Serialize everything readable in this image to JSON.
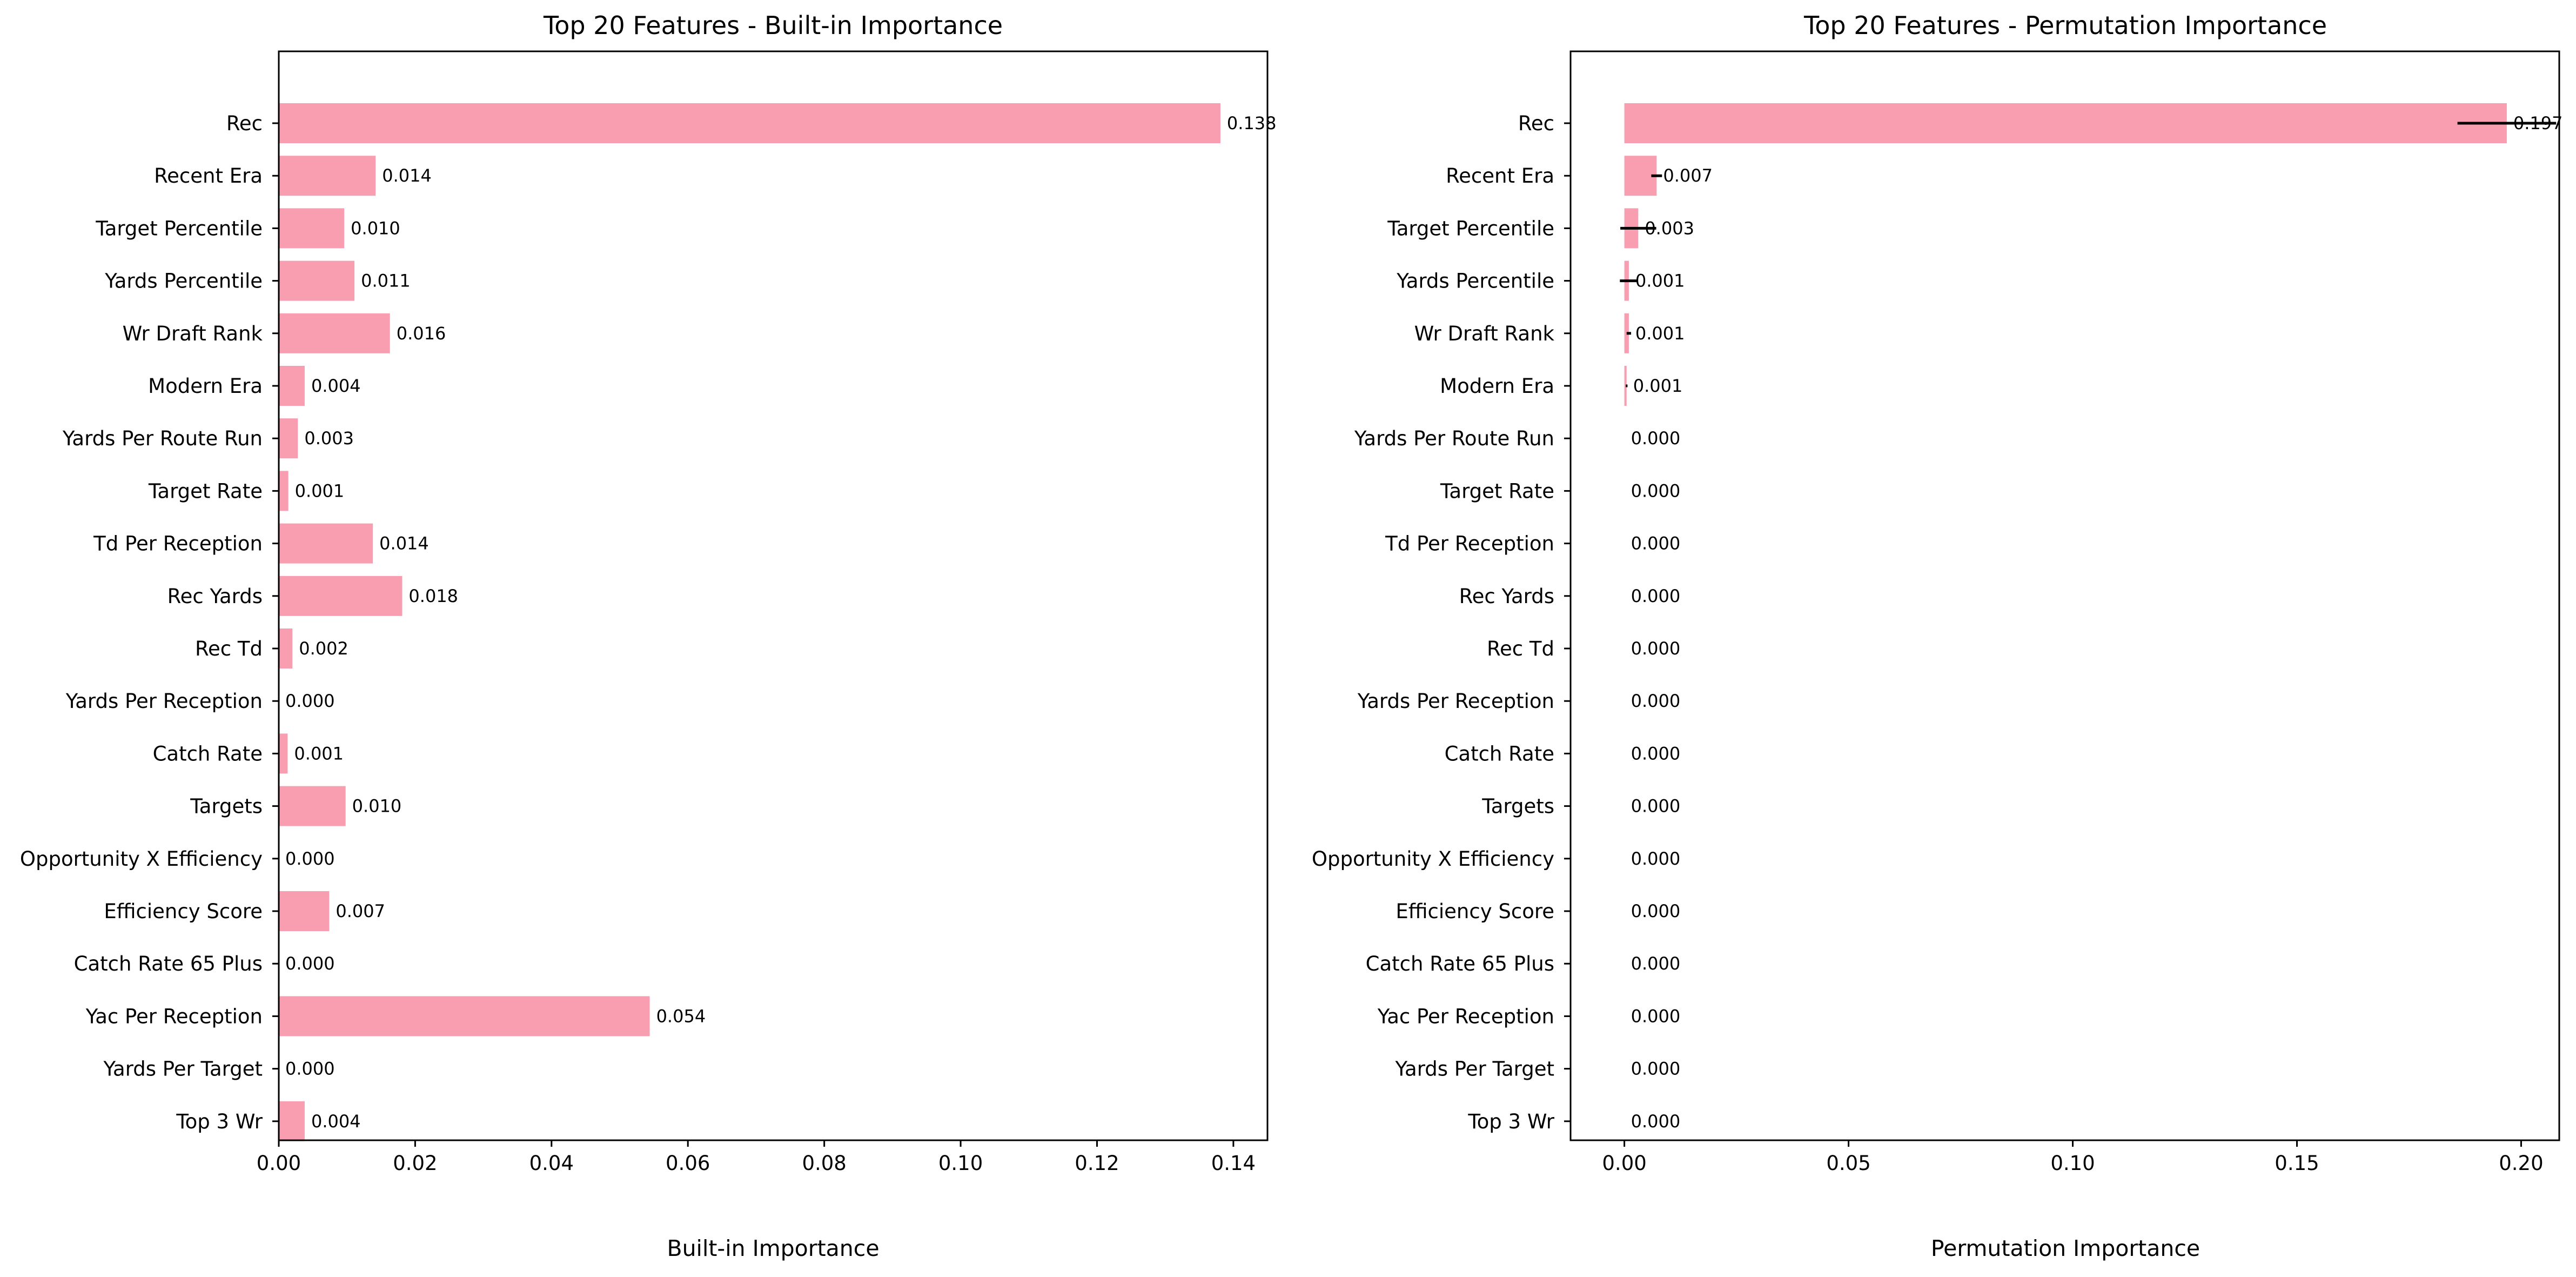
{
  "colors": {
    "bar": "#f89eb0",
    "axis": "#000000",
    "errorbar": "#000000"
  },
  "chart_data": [
    {
      "type": "bar",
      "orientation": "horizontal",
      "title": "Top 20 Features - Built-in Importance",
      "xlabel": "Built-in Importance",
      "ylabel": "",
      "xlim": [
        0,
        0.145
      ],
      "xticks": [
        "0.00",
        "0.02",
        "0.04",
        "0.06",
        "0.08",
        "0.10",
        "0.12",
        "0.14"
      ],
      "xtick_values": [
        0,
        0.02,
        0.04,
        0.06,
        0.08,
        0.1,
        0.12,
        0.14
      ],
      "grid": false,
      "categories": [
        "Rec",
        "Recent Era",
        "Target Percentile",
        "Yards Percentile",
        "Wr Draft Rank",
        "Modern Era",
        "Yards Per Route Run",
        "Target Rate",
        "Td Per Reception",
        "Rec Yards",
        "Rec Td",
        "Yards Per Reception",
        "Catch Rate",
        "Targets",
        "Opportunity X Efficiency",
        "Efficiency Score",
        "Catch Rate 65 Plus",
        "Yac Per Reception",
        "Yards Per Target",
        "Top 3 Wr"
      ],
      "values": [
        0.1381,
        0.0142,
        0.0096,
        0.0111,
        0.0163,
        0.0038,
        0.0028,
        0.0014,
        0.0138,
        0.0181,
        0.002,
        0.0,
        0.0013,
        0.0098,
        0.0,
        0.0074,
        0.0,
        0.0544,
        0.0,
        0.0038
      ],
      "value_labels": [
        "0.138",
        "0.014",
        "0.010",
        "0.011",
        "0.016",
        "0.004",
        "0.003",
        "0.001",
        "0.014",
        "0.018",
        "0.002",
        "0.000",
        "0.001",
        "0.010",
        "0.000",
        "0.007",
        "0.000",
        "0.054",
        "0.000",
        "0.004"
      ]
    },
    {
      "type": "bar",
      "orientation": "horizontal",
      "title": "Top 20 Features - Permutation Importance",
      "xlabel": "Permutation Importance",
      "ylabel": "",
      "xlim": [
        -0.012,
        0.2085
      ],
      "xticks": [
        "0.00",
        "0.05",
        "0.10",
        "0.15",
        "0.20"
      ],
      "xtick_values": [
        0,
        0.05,
        0.1,
        0.15,
        0.2
      ],
      "grid": false,
      "categories": [
        "Rec",
        "Recent Era",
        "Target Percentile",
        "Yards Percentile",
        "Wr Draft Rank",
        "Modern Era",
        "Yards Per Route Run",
        "Target Rate",
        "Td Per Reception",
        "Rec Yards",
        "Rec Td",
        "Yards Per Reception",
        "Catch Rate",
        "Targets",
        "Opportunity X Efficiency",
        "Efficiency Score",
        "Catch Rate 65 Plus",
        "Yac Per Reception",
        "Yards Per Target",
        "Top 3 Wr"
      ],
      "values": [
        0.1968,
        0.0072,
        0.0031,
        0.001,
        0.001,
        0.0005,
        0,
        0,
        0,
        0,
        0,
        0,
        0,
        0,
        0,
        0,
        0,
        0,
        0,
        0
      ],
      "errors": [
        0.011,
        0.0012,
        0.004,
        0.002,
        0.0005,
        0.0002,
        0,
        0,
        0,
        0,
        0,
        0,
        0,
        0,
        0,
        0,
        0,
        0,
        0,
        0
      ],
      "value_labels": [
        "0.197",
        "0.007",
        "0.003",
        "0.001",
        "0.001",
        "0.001",
        "0.000",
        "0.000",
        "0.000",
        "0.000",
        "0.000",
        "0.000",
        "0.000",
        "0.000",
        "0.000",
        "0.000",
        "0.000",
        "0.000",
        "0.000",
        "0.000"
      ]
    }
  ]
}
